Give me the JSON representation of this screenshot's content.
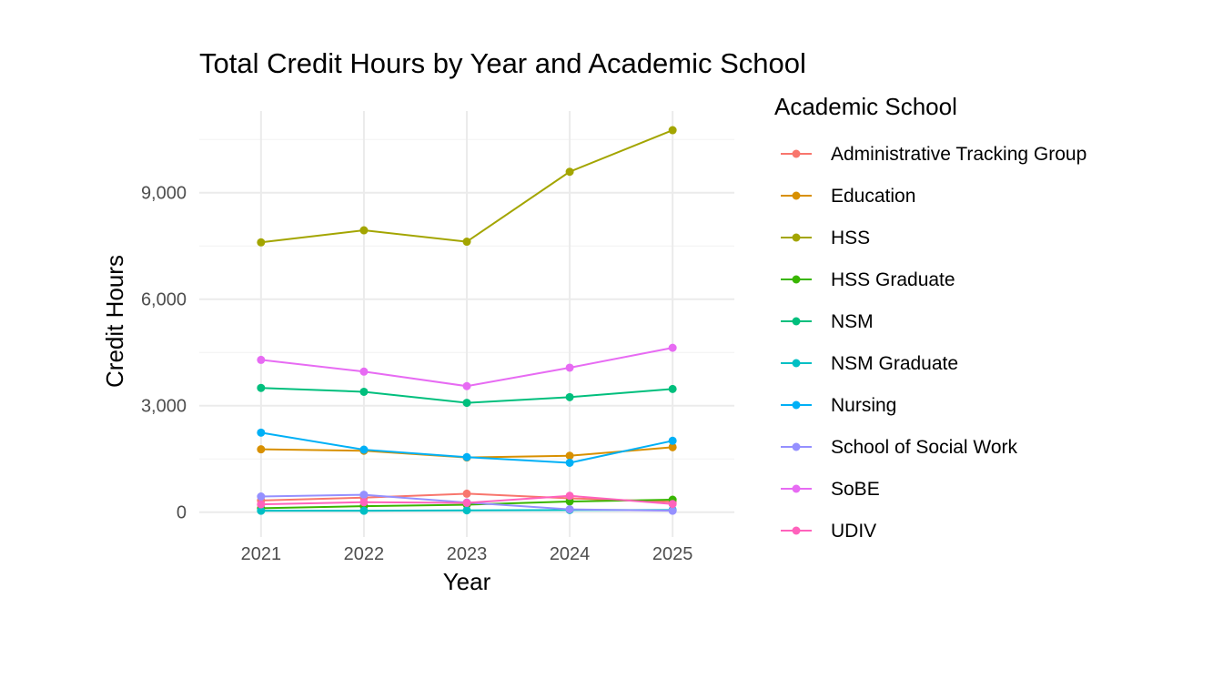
{
  "chart_data": {
    "type": "line",
    "title": "Total Credit Hours by Year and Academic School",
    "xlabel": "Year",
    "ylabel": "Credit Hours",
    "legend_title": "Academic School",
    "legend_position": "right",
    "grid": true,
    "x": [
      2021,
      2022,
      2023,
      2024,
      2025
    ],
    "x_tick_labels": [
      "2021",
      "2022",
      "2023",
      "2024",
      "2025"
    ],
    "y_ticks": [
      0,
      3000,
      6000,
      9000
    ],
    "y_tick_labels": [
      "0",
      "3,000",
      "6,000",
      "9,000"
    ],
    "ylim": [
      -700,
      11300
    ],
    "series": [
      {
        "name": "Administrative Tracking Group",
        "color": "#F8766D",
        "values": [
          330,
          410,
          520,
          390,
          290
        ]
      },
      {
        "name": "Education",
        "color": "#D89000",
        "values": [
          1770,
          1730,
          1540,
          1590,
          1830
        ]
      },
      {
        "name": "HSS",
        "color": "#A3A500",
        "values": [
          7600,
          7940,
          7620,
          9590,
          10760
        ]
      },
      {
        "name": "HSS Graduate",
        "color": "#39B600",
        "values": [
          110,
          170,
          210,
          300,
          350
        ]
      },
      {
        "name": "NSM",
        "color": "#00BF7D",
        "values": [
          3500,
          3390,
          3080,
          3240,
          3470
        ]
      },
      {
        "name": "NSM Graduate",
        "color": "#00BFC4",
        "values": [
          40,
          40,
          50,
          60,
          60
        ]
      },
      {
        "name": "Nursing",
        "color": "#00B0F6",
        "values": [
          2240,
          1760,
          1550,
          1390,
          2010
        ]
      },
      {
        "name": "School of Social Work",
        "color": "#9590FF",
        "values": [
          440,
          490,
          270,
          80,
          40
        ]
      },
      {
        "name": "SoBE",
        "color": "#E76BF3",
        "values": [
          4290,
          3960,
          3550,
          4070,
          4630
        ]
      },
      {
        "name": "UDIV",
        "color": "#FF62BC",
        "values": [
          220,
          280,
          260,
          460,
          230
        ]
      }
    ]
  }
}
